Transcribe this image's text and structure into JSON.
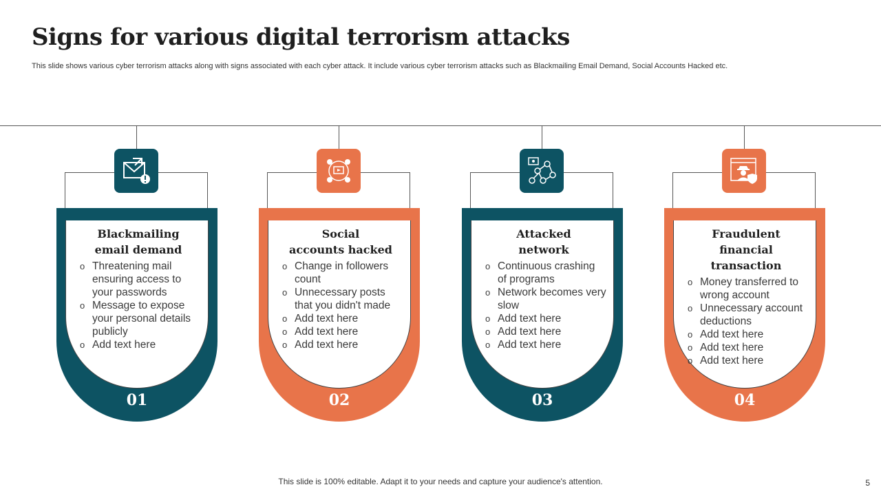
{
  "slide": {
    "title": "Signs for various digital terrorism attacks",
    "subtitle": "This slide shows various cyber terrorism attacks along with signs associated with each cyber attack. It include various cyber terrorism attacks such as Blackmailing Email Demand, Social Accounts Hacked etc.",
    "footer": "This slide is 100% editable. Adapt it to your needs and capture your audience's attention.",
    "page_number": "5"
  },
  "colors": {
    "teal": "#0d5363",
    "orange": "#e8744a"
  },
  "cards": [
    {
      "number": "01",
      "color": "#0d5363",
      "icon": "email-alert-icon",
      "title_lines": [
        "Blackmailing",
        "email demand"
      ],
      "bullets": [
        "Threatening mail ensuring access to your passwords",
        "Message to expose your personal details publicly",
        "Add text here"
      ]
    },
    {
      "number": "02",
      "color": "#e8744a",
      "icon": "social-network-icon",
      "title_lines": [
        "Social",
        "accounts hacked"
      ],
      "bullets": [
        "Change in followers count",
        "Unnecessary posts that you didn't made",
        "Add text here",
        "Add text here",
        "Add text here"
      ]
    },
    {
      "number": "03",
      "color": "#0d5363",
      "icon": "network-users-icon",
      "title_lines": [
        "Attacked",
        "network"
      ],
      "bullets": [
        "Continuous crashing of programs",
        "Network becomes very slow",
        "Add text here",
        "Add text here",
        "Add text here"
      ]
    },
    {
      "number": "04",
      "color": "#e8744a",
      "icon": "hacker-browser-icon",
      "title_lines": [
        "Fraudulent financial",
        "transaction"
      ],
      "bullets": [
        "Money transferred to wrong account",
        "Unnecessary account deductions",
        "Add text here",
        "Add text here",
        "Add text here"
      ]
    }
  ]
}
